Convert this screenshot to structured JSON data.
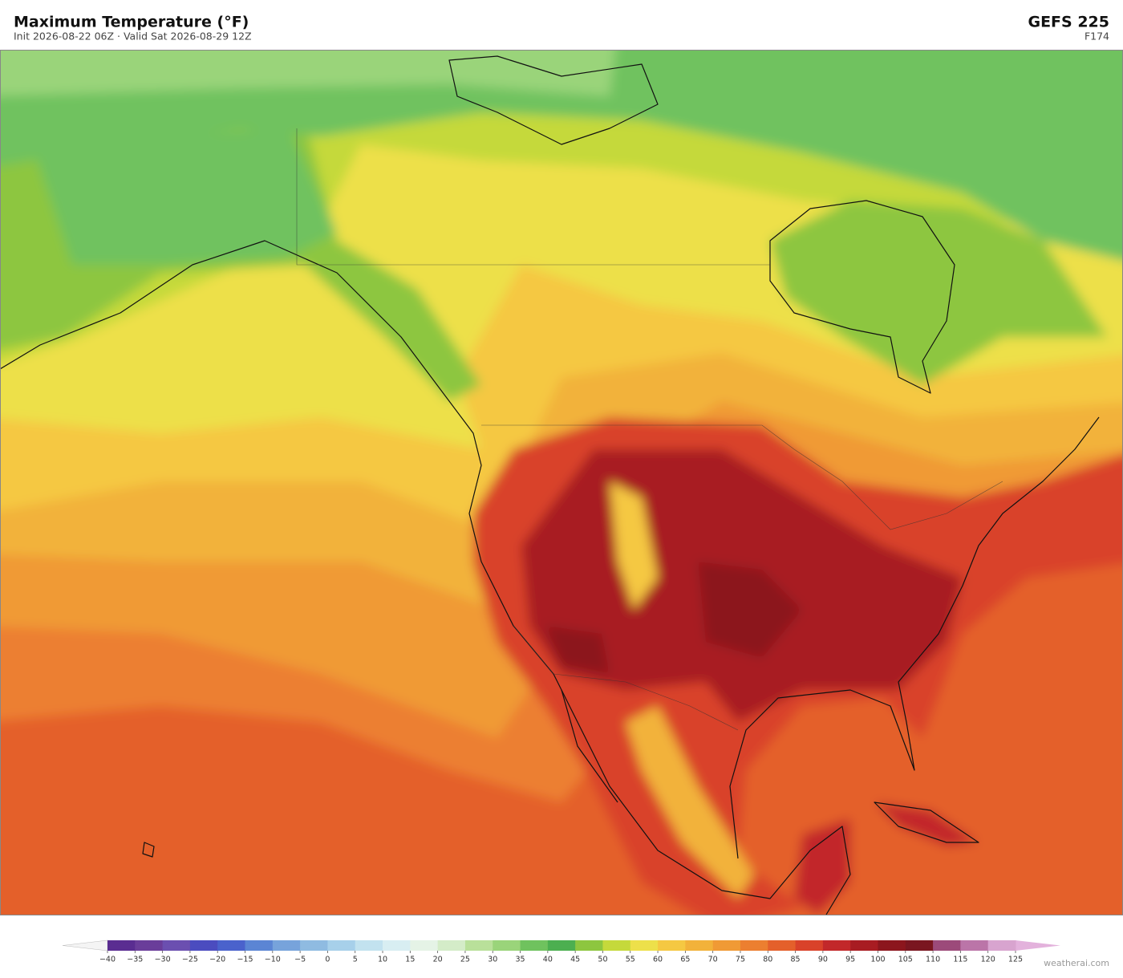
{
  "header": {
    "title": "Maximum Temperature  (°F)",
    "subtitle": "Init 2026-08-22 06Z   ·   Valid Sat 2026-08-29 12Z",
    "model": "GEFS  225",
    "forecast_hour": "F174"
  },
  "colorbar": {
    "ticks": [
      {
        "value": -40,
        "label": "−40"
      },
      {
        "value": -35,
        "label": "−35"
      },
      {
        "value": -30,
        "label": "−30"
      },
      {
        "value": -25,
        "label": "−25"
      },
      {
        "value": -20,
        "label": "−20"
      },
      {
        "value": -15,
        "label": "−15"
      },
      {
        "value": -10,
        "label": "−10"
      },
      {
        "value": -5,
        "label": "−5"
      },
      0,
      5,
      10,
      15,
      20,
      25,
      30,
      35,
      40,
      45,
      50,
      55,
      60,
      65,
      70,
      75,
      80,
      85,
      90,
      95,
      100,
      105,
      110,
      115,
      120,
      125
    ],
    "colors": [
      "#5a2d91",
      "#6a3d9a",
      "#6b4fb0",
      "#4b4cbf",
      "#4a62cc",
      "#5b85d4",
      "#77a3db",
      "#8fbbe1",
      "#a7d0ea",
      "#c2e2ef",
      "#d8eef2",
      "#e5f3e6",
      "#d4ecc8",
      "#b9e09a",
      "#9ad47a",
      "#6fc25e",
      "#4caf50",
      "#8dc63f",
      "#c5d93b",
      "#ede04a",
      "#f5c842",
      "#f2b23a",
      "#f09a35",
      "#ec7f30",
      "#e4602b",
      "#d9422a",
      "#c2282a",
      "#a81c22",
      "#8c161d",
      "#7a1620",
      "#9c4a7a",
      "#bb75a8",
      "#d8a4cf"
    ],
    "under_color": "#f4f4f4",
    "over_color": "#e3b2dc"
  },
  "watermark": "weatherai.com"
}
